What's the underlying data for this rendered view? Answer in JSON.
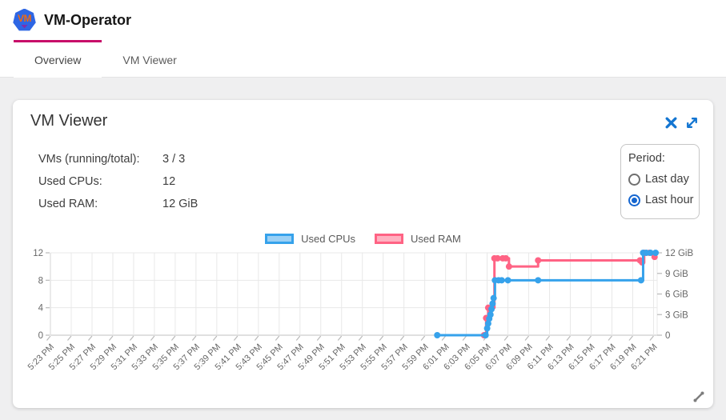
{
  "header": {
    "logo_text": "VM",
    "title": "VM-Operator"
  },
  "tabs": [
    {
      "label": "Overview",
      "active": true
    },
    {
      "label": "VM Viewer",
      "active": false
    }
  ],
  "card": {
    "title": "VM Viewer",
    "stats": [
      {
        "label": "VMs (running/total):",
        "value": "3 / 3"
      },
      {
        "label": "Used CPUs:",
        "value": "12"
      },
      {
        "label": "Used RAM:",
        "value": "12 GiB"
      }
    ],
    "period": {
      "label": "Period:",
      "options": [
        {
          "label": "Last day",
          "selected": false
        },
        {
          "label": "Last hour",
          "selected": true
        }
      ]
    }
  },
  "colors": {
    "tab_accent": "#c70d69",
    "icon_blue": "#1476d2",
    "radio_selected": "#1566d0",
    "body_background": "#efeff0",
    "gridline": "#e8e8e8",
    "axis_line": "#c2c2c2",
    "axis_text": "#676767"
  },
  "icons": {
    "close": "x-mark",
    "expand": "diagonal-double-arrow",
    "resize": "diagonal-drag-handle"
  },
  "chart_data": {
    "type": "line",
    "step": "after",
    "x_unit": "minutes after 5:23 PM",
    "x_range": [
      0,
      58.35
    ],
    "x_tick_interval_min": 2,
    "x_tick_labels": [
      "5:23 PM",
      "5:25 PM",
      "5:27 PM",
      "5:29 PM",
      "5:31 PM",
      "5:33 PM",
      "5:35 PM",
      "5:37 PM",
      "5:39 PM",
      "5:41 PM",
      "5:43 PM",
      "5:45 PM",
      "5:47 PM",
      "5:49 PM",
      "5:51 PM",
      "5:53 PM",
      "5:55 PM",
      "5:57 PM",
      "5:59 PM",
      "6:01 PM",
      "6:03 PM",
      "6:05 PM",
      "6:07 PM",
      "6:09 PM",
      "6:11 PM",
      "6:13 PM",
      "6:15 PM",
      "6:17 PM",
      "6:19 PM",
      "6:21 PM"
    ],
    "left_axis": {
      "range": [
        0,
        12
      ],
      "ticks": [
        0,
        4,
        8,
        12
      ]
    },
    "right_axis": {
      "range": [
        0,
        12
      ],
      "tick_values": [
        0,
        3,
        6,
        9,
        12
      ],
      "tick_labels": [
        "0",
        "3 GiB",
        "6 GiB",
        "9 GiB",
        "12 GiB"
      ]
    },
    "grid": true,
    "legend_position": "top-center",
    "series": [
      {
        "name": "Used RAM",
        "axis": "right",
        "color": "#ff6384",
        "fill": "#ffb1c1",
        "points": [
          [
            41.7,
            0
          ],
          [
            41.9,
            2.5
          ],
          [
            42.1,
            4.0
          ],
          [
            42.7,
            11.2
          ],
          [
            43.0,
            11.2
          ],
          [
            43.5,
            11.2
          ],
          [
            43.8,
            11.2
          ],
          [
            44.1,
            10.0
          ],
          [
            46.9,
            10.9
          ],
          [
            56.7,
            10.9
          ],
          [
            56.9,
            10.6
          ],
          [
            57.1,
            12
          ],
          [
            57.6,
            12
          ],
          [
            58.1,
            11.4
          ]
        ]
      },
      {
        "name": "Used CPUs",
        "axis": "left",
        "color": "#36a2eb",
        "fill": "#9bd0f5",
        "points": [
          [
            37.2,
            0
          ],
          [
            41.85,
            0
          ],
          [
            42.0,
            1
          ],
          [
            42.1,
            1.7
          ],
          [
            42.2,
            2.4
          ],
          [
            42.32,
            3.0
          ],
          [
            42.42,
            3.8
          ],
          [
            42.52,
            4.6
          ],
          [
            42.62,
            5.4
          ],
          [
            42.75,
            8
          ],
          [
            43.1,
            8
          ],
          [
            43.4,
            8
          ],
          [
            44.0,
            8
          ],
          [
            46.9,
            8
          ],
          [
            56.8,
            8
          ],
          [
            57.0,
            12
          ],
          [
            57.3,
            12
          ],
          [
            57.7,
            12
          ],
          [
            58.2,
            12
          ]
        ]
      }
    ],
    "legend_order": [
      "Used CPUs",
      "Used RAM"
    ]
  }
}
